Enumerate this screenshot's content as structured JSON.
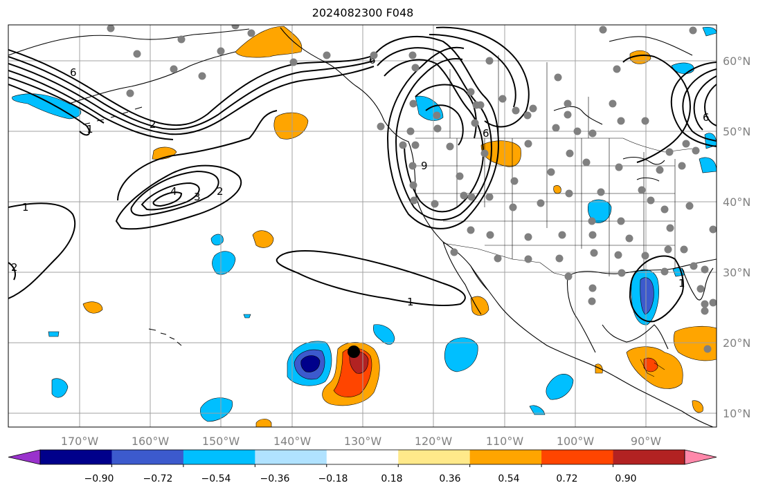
{
  "title": "2024082300 F048",
  "map": {
    "projection": "PlateCarree",
    "lon_range": [
      -180,
      -80
    ],
    "lat_range": [
      7,
      64
    ],
    "grid": true,
    "lat_labels": [
      "10°N",
      "20°N",
      "30°N",
      "40°N",
      "50°N",
      "60°N"
    ],
    "lon_labels": [
      "170°W",
      "160°W",
      "150°W",
      "140°W",
      "130°W",
      "120°W",
      "110°W",
      "100°W",
      "90°W"
    ],
    "contour_labels": [
      "1",
      "1",
      "1",
      "2",
      "2",
      "2",
      "3",
      "4",
      "6",
      "6",
      "6",
      "9",
      "6",
      "1"
    ],
    "station_marker_color": "#808080",
    "marker_color": "#000000"
  },
  "colorbar": {
    "ticks": [
      "−0.90",
      "−0.72",
      "−0.54",
      "−0.36",
      "−0.18",
      "0.18",
      "0.36",
      "0.54",
      "0.72",
      "0.90"
    ],
    "colors": [
      "#9932cc",
      "#00008b",
      "#3c5acd",
      "#00bfff",
      "#b0e2ff",
      "#ffffff",
      "#ffe98a",
      "#ffa500",
      "#ff4500",
      "#b22222",
      "#ff88aa"
    ]
  }
}
